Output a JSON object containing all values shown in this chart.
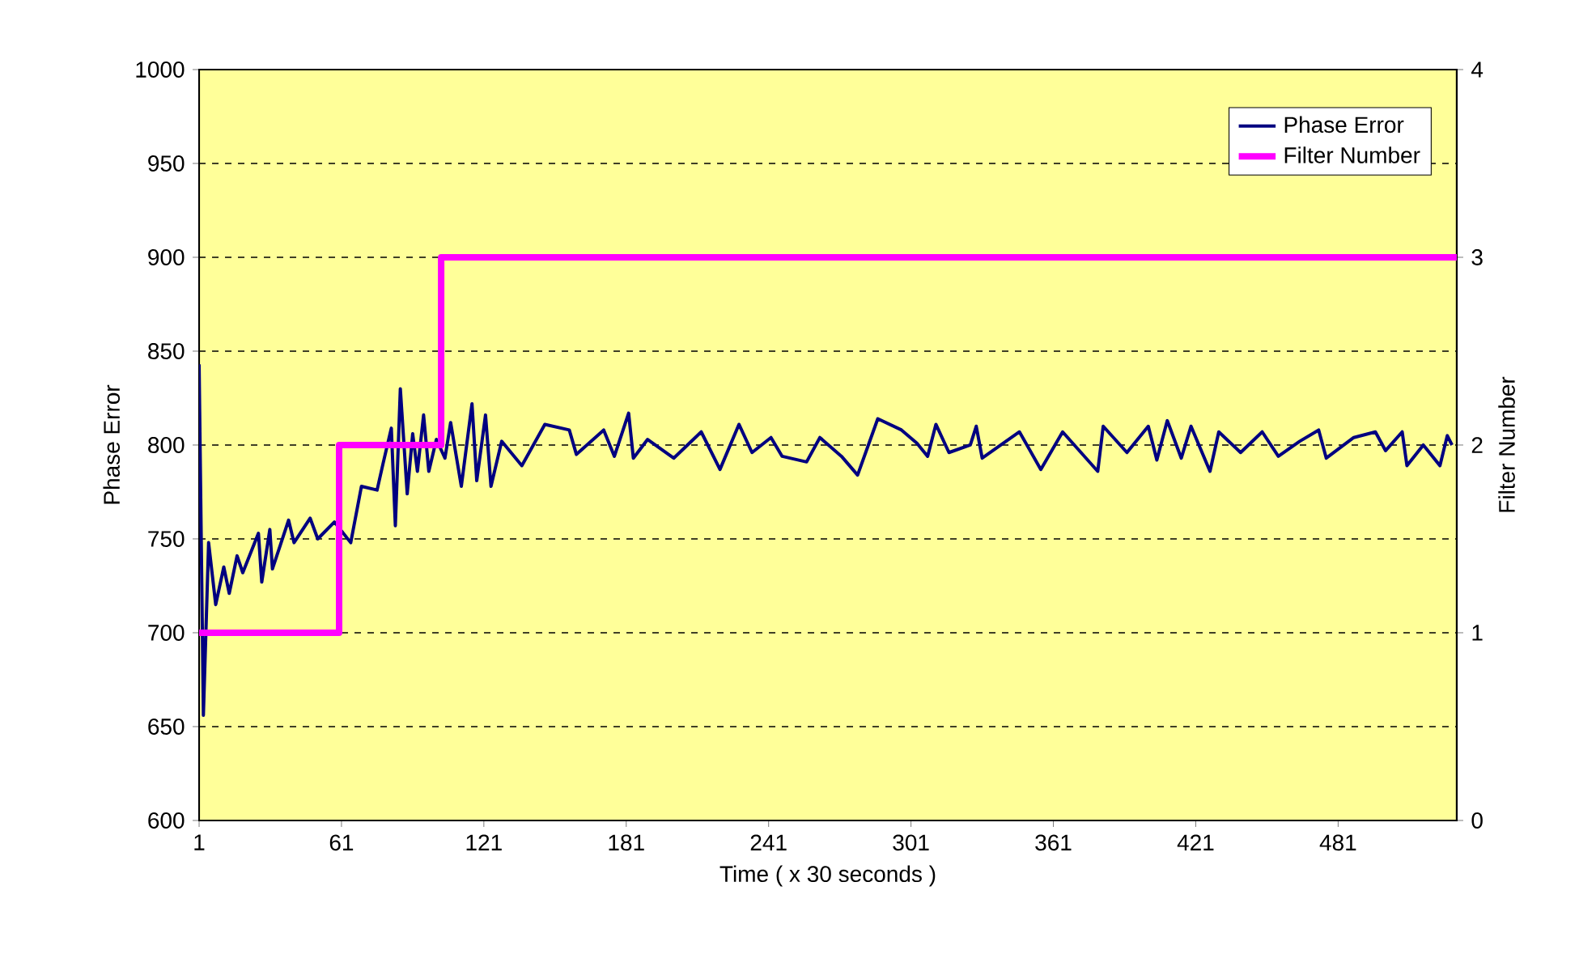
{
  "chart_data": {
    "type": "line",
    "xlabel": "Time ( x 30 seconds )",
    "ylabel": "Phase Error",
    "y2label": "Filter Number",
    "xlim": [
      1,
      531
    ],
    "xticks": [
      1,
      61,
      121,
      181,
      241,
      301,
      361,
      421,
      481
    ],
    "ylim": [
      600,
      1000
    ],
    "yticks": [
      600,
      650,
      700,
      750,
      800,
      850,
      900,
      950,
      1000
    ],
    "y2lim": [
      0,
      4
    ],
    "y2ticks": [
      0,
      1,
      2,
      3,
      4
    ],
    "grid": "y",
    "legend": "top right",
    "marker": "none",
    "line_style": "solid",
    "series": [
      {
        "name": "Phase Error",
        "color": "#000080",
        "x": [
          1,
          2.8,
          5,
          8,
          11.4,
          13.7,
          17,
          19.4,
          26,
          27.4,
          30.8,
          31.9,
          38.7,
          41,
          47.8,
          51,
          58,
          64.9,
          69.4,
          76,
          78.5,
          82,
          83.7,
          85.8,
          88.7,
          91,
          93,
          95.6,
          97.8,
          101,
          104.6,
          107,
          111.5,
          116,
          118,
          121.7,
          124,
          128.5,
          137,
          146.7,
          157,
          160,
          171.5,
          176,
          182,
          184,
          190,
          201,
          212.6,
          220.5,
          228.5,
          234,
          242,
          246.7,
          257,
          262.6,
          271.7,
          278.5,
          287,
          297,
          303.5,
          308,
          311.5,
          317,
          326,
          328.5,
          331,
          346.7,
          355.7,
          364.9,
          379.7,
          382,
          392,
          401,
          404.6,
          409,
          414.9,
          419,
          427,
          430.7,
          439.9,
          449,
          455.8,
          464.8,
          472.8,
          476,
          487.6,
          496.7,
          501,
          508,
          510,
          516.9,
          523.9,
          527,
          529
        ],
        "values": [
          843,
          656,
          748,
          715,
          735,
          721,
          741,
          732,
          753,
          727,
          755,
          734,
          760,
          748,
          761,
          750,
          759,
          748,
          778,
          776,
          790,
          809,
          757,
          830,
          774,
          806,
          786,
          816,
          786,
          803,
          793,
          812,
          778,
          822,
          781,
          816,
          778,
          802,
          789,
          811,
          808,
          795,
          808,
          794,
          817,
          793,
          803,
          793,
          807,
          787,
          811,
          796,
          804,
          794,
          791,
          804,
          794,
          784,
          814,
          808,
          801,
          794,
          811,
          796,
          800,
          810,
          793,
          807,
          787,
          807,
          786,
          810,
          796,
          810,
          792,
          813,
          793,
          810,
          786,
          807,
          796,
          807,
          794,
          802,
          808,
          793,
          804,
          807,
          797,
          807,
          789,
          800,
          789,
          805,
          800
        ]
      },
      {
        "name": "Filter Number",
        "color": "#ff00ff",
        "type": "step",
        "axis": "y2",
        "x": [
          1,
          60,
          103,
          531
        ],
        "values": [
          1,
          2,
          3,
          3
        ]
      }
    ]
  }
}
